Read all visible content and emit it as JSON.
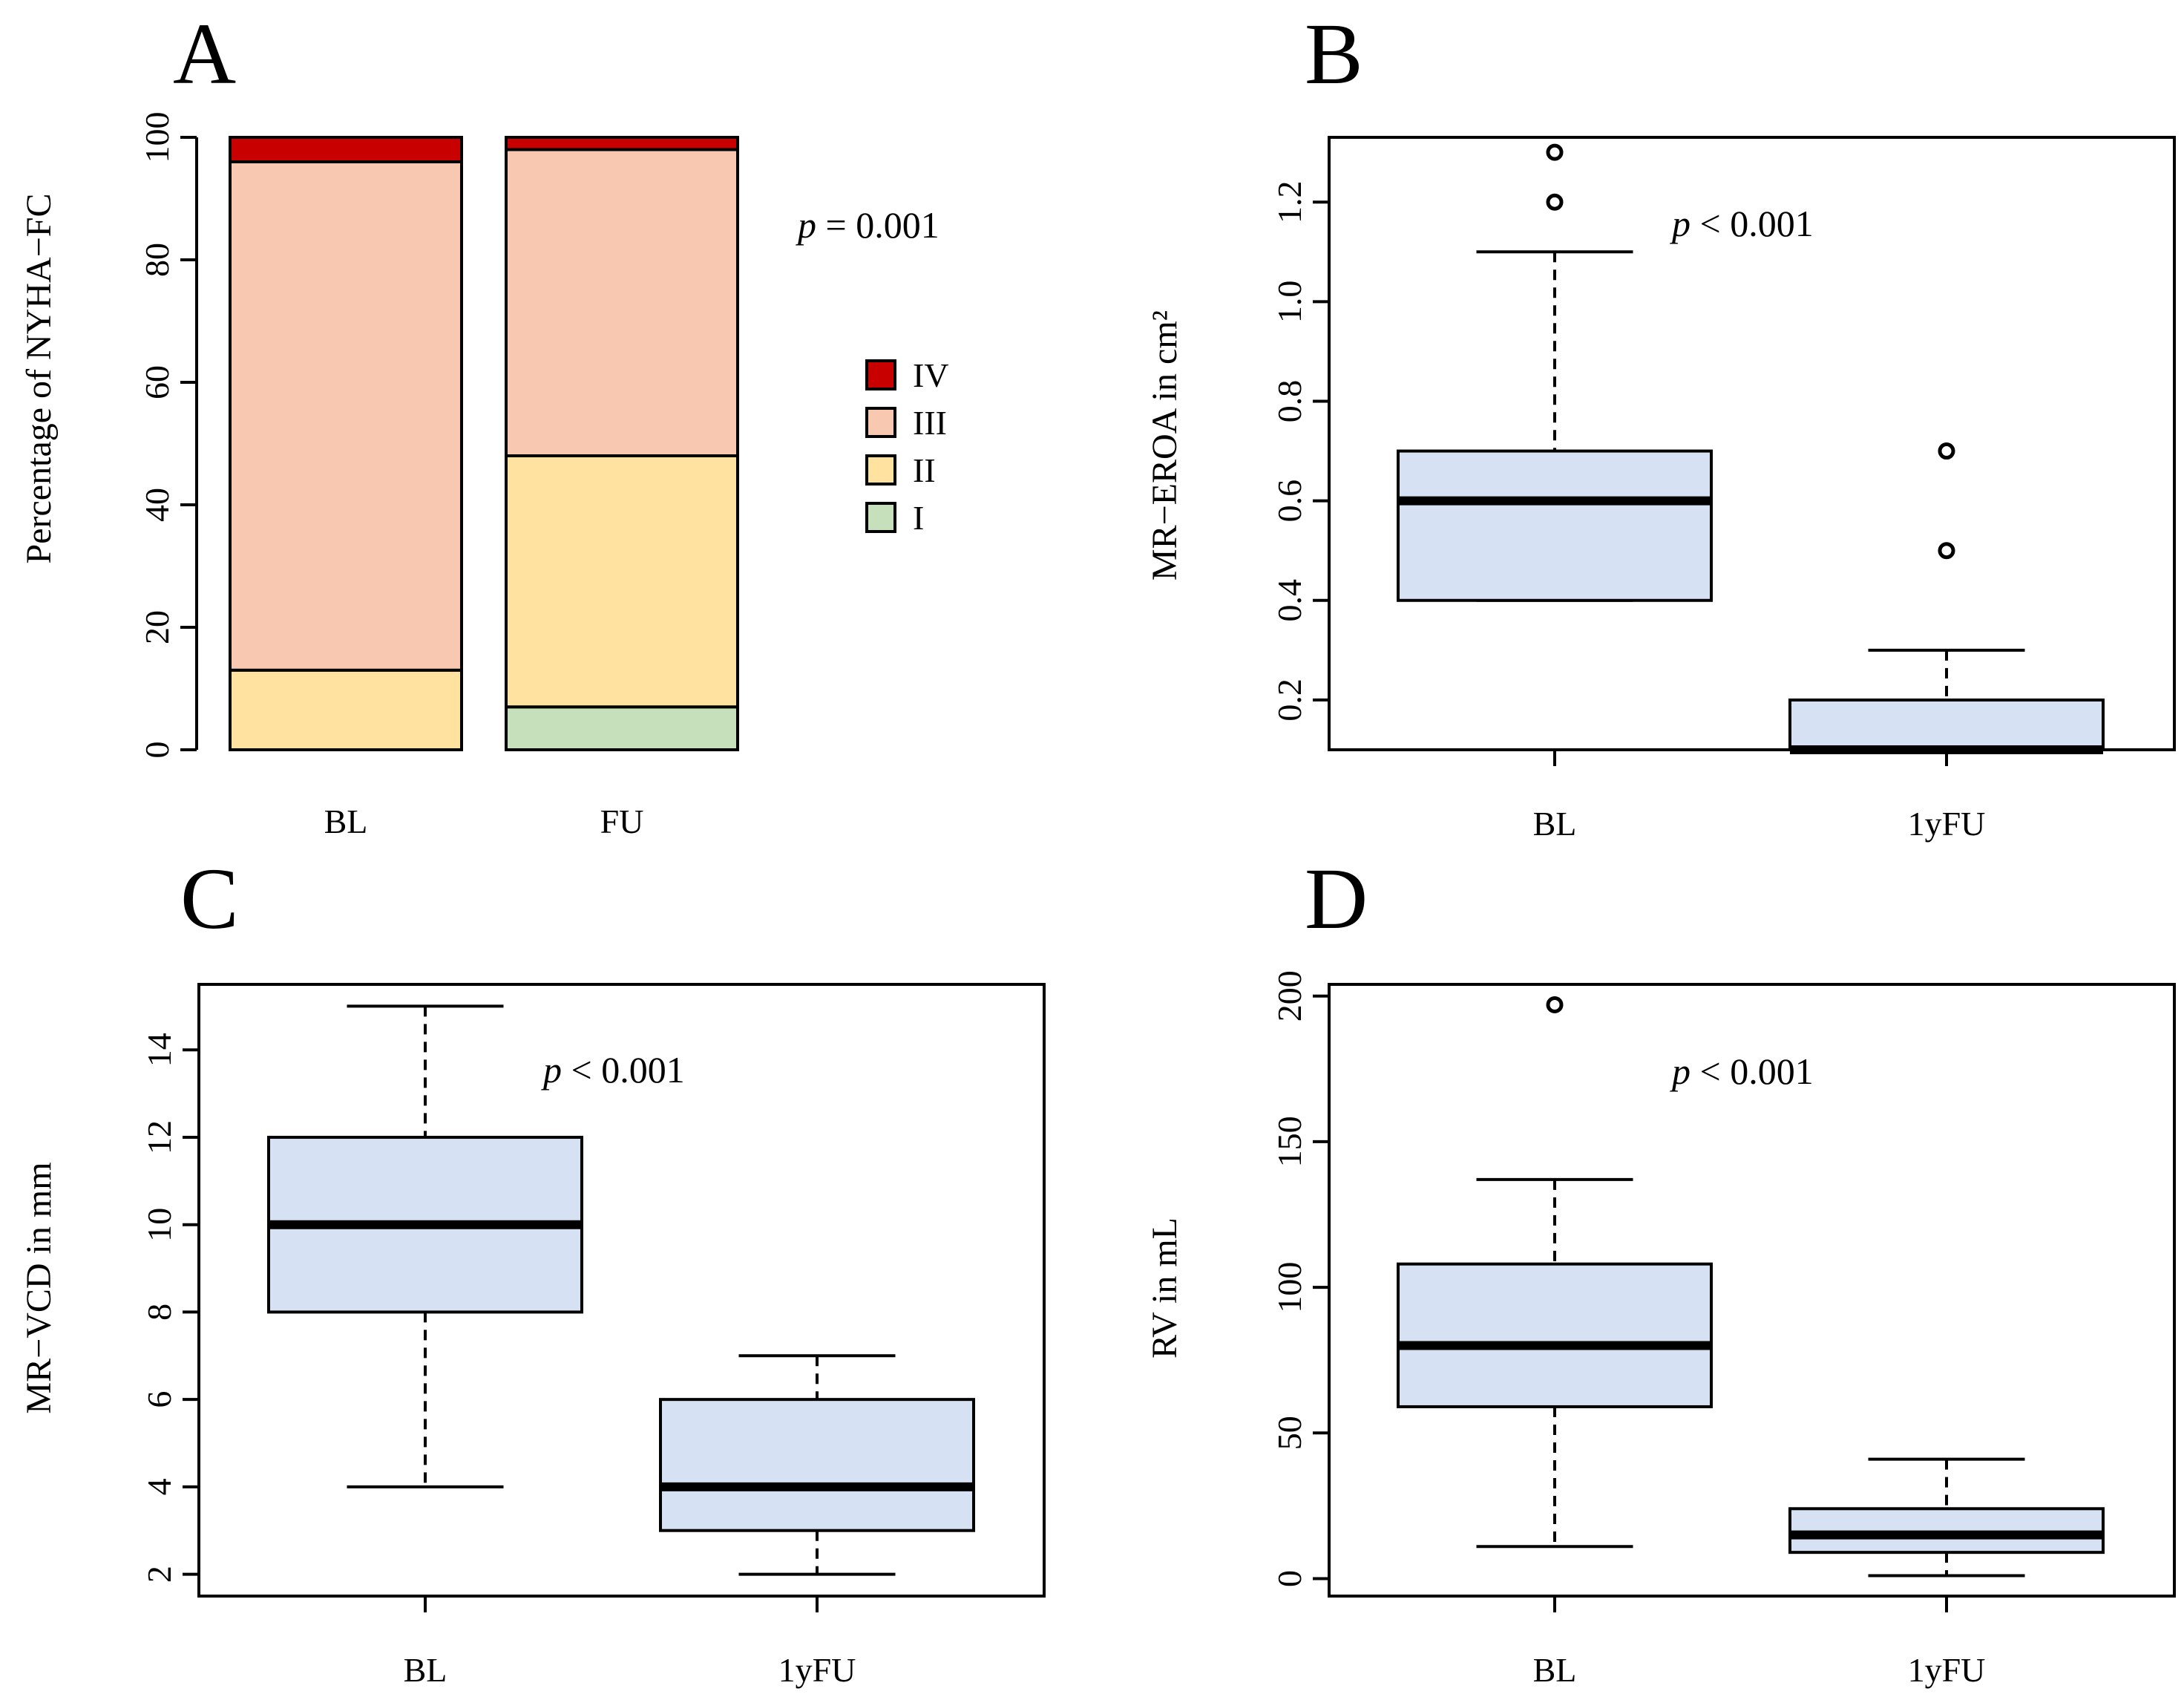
{
  "colors": {
    "box_fill": "#d6e2f3",
    "nyha_IV": "#c80000",
    "nyha_III": "#f9c8b0",
    "nyha_II": "#ffe1a0",
    "nyha_I": "#c6e0bc"
  },
  "chart_data": [
    {
      "id": "A",
      "panel_label": "A",
      "type": "bar",
      "stacked": true,
      "categories": [
        "BL",
        "FU"
      ],
      "series": [
        {
          "name": "I",
          "values": [
            0,
            7
          ]
        },
        {
          "name": "II",
          "values": [
            13,
            41
          ]
        },
        {
          "name": "III",
          "values": [
            83,
            50
          ]
        },
        {
          "name": "IV",
          "values": [
            4,
            2
          ]
        }
      ],
      "ylabel": "Percentage of NYHA−FC",
      "xlabel": "",
      "ylim": [
        0,
        100
      ],
      "yticks": [
        0,
        20,
        40,
        60,
        80,
        100
      ],
      "legend": [
        "IV",
        "III",
        "II",
        "I"
      ],
      "legend_position": "right",
      "p_label": "p",
      "p_text": " = 0.001"
    },
    {
      "id": "B",
      "panel_label": "B",
      "type": "box",
      "categories": [
        "BL",
        "1yFU"
      ],
      "boxes": [
        {
          "whisker_low": 0.4,
          "q1": 0.4,
          "median": 0.6,
          "q3": 0.7,
          "whisker_high": 1.1,
          "outliers": [
            1.2,
            1.3
          ]
        },
        {
          "whisker_low": 0.1,
          "q1": 0.1,
          "median": 0.1,
          "q3": 0.2,
          "whisker_high": 0.3,
          "outliers": [
            0.5,
            0.7
          ]
        }
      ],
      "ylabel": "MR−EROA in cm²",
      "ylim": [
        0.1,
        1.33
      ],
      "yticks": [
        0.2,
        0.4,
        0.6,
        0.8,
        1.0,
        1.2
      ],
      "ytick_labels": [
        "0.2",
        "0.4",
        "0.6",
        "0.8",
        "1.0",
        "1.2"
      ],
      "p_label": "p",
      "p_text": " < 0.001"
    },
    {
      "id": "C",
      "panel_label": "C",
      "type": "box",
      "categories": [
        "BL",
        "1yFU"
      ],
      "boxes": [
        {
          "whisker_low": 4,
          "q1": 8,
          "median": 10,
          "q3": 12,
          "whisker_high": 15,
          "outliers": []
        },
        {
          "whisker_low": 2,
          "q1": 3,
          "median": 4,
          "q3": 6,
          "whisker_high": 7,
          "outliers": []
        }
      ],
      "ylabel": "MR−VCD in mm",
      "ylim": [
        1.5,
        15.5
      ],
      "yticks": [
        2,
        4,
        6,
        8,
        10,
        12,
        14
      ],
      "ytick_labels": [
        "2",
        "4",
        "6",
        "8",
        "10",
        "12",
        "14"
      ],
      "p_label": "p",
      "p_text": " < 0.001"
    },
    {
      "id": "D",
      "panel_label": "D",
      "type": "box",
      "categories": [
        "BL",
        "1yFU"
      ],
      "boxes": [
        {
          "whisker_low": 11,
          "q1": 59,
          "median": 80,
          "q3": 108,
          "whisker_high": 137,
          "outliers": [
            197
          ]
        },
        {
          "whisker_low": 1,
          "q1": 9,
          "median": 15,
          "q3": 24,
          "whisker_high": 41,
          "outliers": []
        }
      ],
      "ylabel": "RV in mL",
      "ylim": [
        -6,
        204
      ],
      "yticks": [
        0,
        50,
        100,
        150,
        200
      ],
      "ytick_labels": [
        "0",
        "50",
        "100",
        "150",
        "200"
      ],
      "p_label": "p",
      "p_text": " < 0.001"
    }
  ]
}
